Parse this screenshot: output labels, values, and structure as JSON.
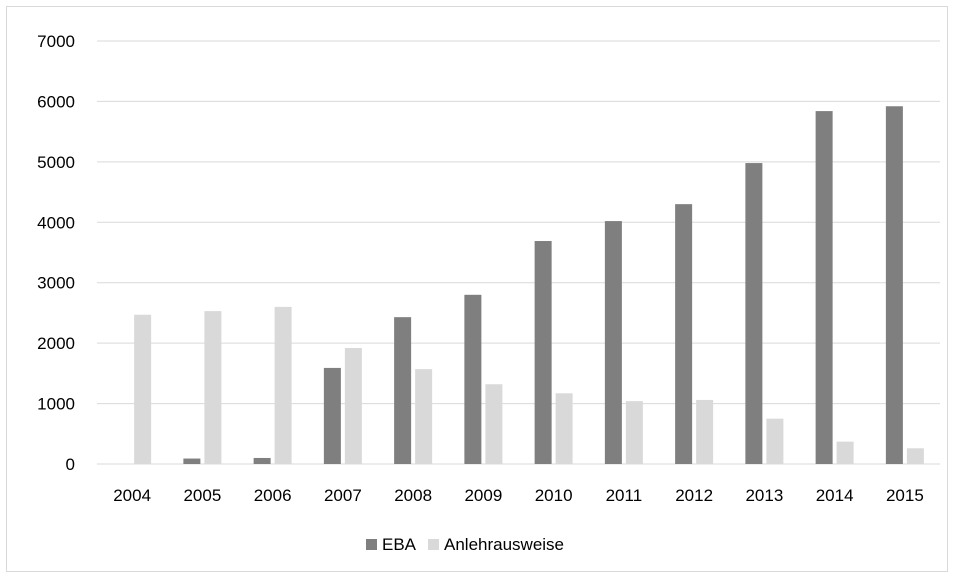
{
  "chart_data": {
    "type": "bar",
    "categories": [
      "2004",
      "2005",
      "2006",
      "2007",
      "2008",
      "2009",
      "2010",
      "2011",
      "2012",
      "2013",
      "2014",
      "2015"
    ],
    "series": [
      {
        "name": "EBA",
        "values": [
          0,
          90,
          100,
          1590,
          2430,
          2800,
          3690,
          4020,
          4300,
          4980,
          5840,
          5920
        ],
        "color": "#7f7f7f"
      },
      {
        "name": "Anlehrausweise",
        "values": [
          2470,
          2530,
          2600,
          1920,
          1570,
          1320,
          1170,
          1040,
          1060,
          750,
          370,
          260
        ],
        "color": "#d9d9d9"
      }
    ],
    "ylim": [
      0,
      7000
    ],
    "yticks": [
      "0",
      "1000",
      "2000",
      "3000",
      "4000",
      "5000",
      "6000",
      "7000"
    ],
    "grid": true,
    "legend_position": "bottom",
    "title": "",
    "xlabel": "",
    "ylabel": ""
  }
}
